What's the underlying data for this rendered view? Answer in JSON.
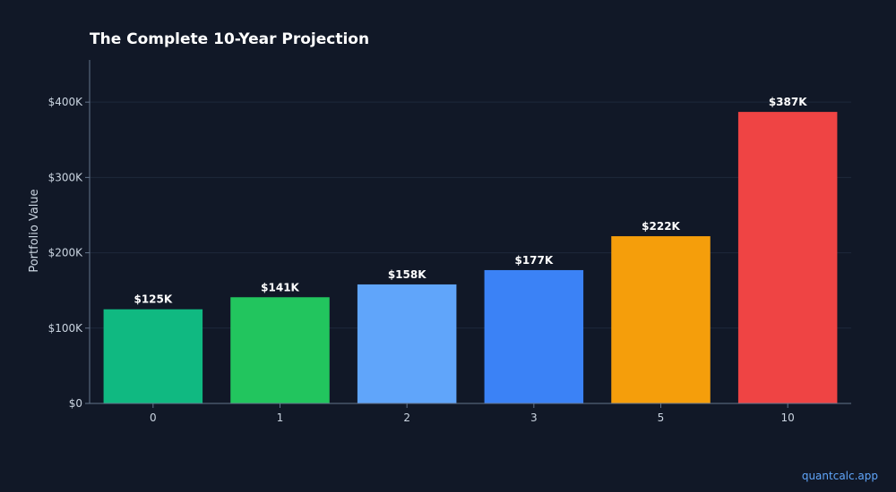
{
  "watermark": "quantcalc.app",
  "colors": {
    "background": "#111827",
    "grid": "#1e293b",
    "axis": "#64748b",
    "text": "#cbd5e1"
  },
  "chart_data": {
    "type": "bar",
    "title": "The Complete 10-Year Projection",
    "xlabel": "",
    "ylabel": "Portfolio Value",
    "categories": [
      "0",
      "1",
      "2",
      "3",
      "5",
      "10"
    ],
    "values": [
      125000,
      141000,
      158000,
      177000,
      222000,
      387000
    ],
    "value_labels": [
      "$125K",
      "$141K",
      "$158K",
      "$177K",
      "$222K",
      "$387K"
    ],
    "bar_colors": [
      "#10b981",
      "#22c55e",
      "#60a5fa",
      "#3b82f6",
      "#f59e0b",
      "#ef4444"
    ],
    "ylim": [
      0,
      456000
    ],
    "yticks": [
      0,
      100000,
      200000,
      300000,
      400000
    ],
    "ytick_labels": [
      "$0",
      "$100K",
      "$200K",
      "$300K",
      "$400K"
    ],
    "grid": true,
    "legend": "none"
  }
}
